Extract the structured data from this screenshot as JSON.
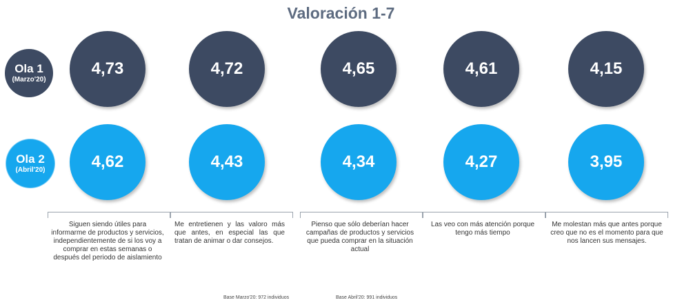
{
  "title": "Valoración 1-7",
  "waves": [
    {
      "name": "Ola 1",
      "sub": "(Marzo'20)",
      "color": "#3d4a62"
    },
    {
      "name": "Ola 2",
      "sub": "(Abril'20)",
      "color": "#16a7ee"
    }
  ],
  "chart_data": {
    "type": "bubble-comparison",
    "title": "Valoración 1-7",
    "categories": [
      "Siguen siendo útiles para informarme de productos y servicios, independientemente de si los voy a comprar en estas semanas o después del periodo de aislamiento",
      "Me entretienen y las valoro más que antes, en especial las que tratan de animar o dar consejos.",
      "Pienso que sólo deberían hacer campañas de productos y servicios que pueda comprar en la situación actual",
      "Las veo con más atención porque tengo más tiempo",
      "Me molestan más que antes porque creo que no es el momento para que nos lancen sus mensajes."
    ],
    "series": [
      {
        "name": "Ola 1 (Marzo'20)",
        "color": "#3d4a62",
        "values": [
          4.73,
          4.72,
          4.65,
          4.61,
          4.15
        ],
        "labels": [
          "4,73",
          "4,72",
          "4,65",
          "4,61",
          "4,15"
        ]
      },
      {
        "name": "Ola 2 (Abril'20)",
        "color": "#16a7ee",
        "values": [
          4.62,
          4.43,
          4.34,
          4.27,
          3.95
        ],
        "labels": [
          "4,62",
          "4,43",
          "4,34",
          "4,27",
          "3,95"
        ]
      }
    ]
  },
  "footer": {
    "base1": "Base Marzo'20: 972 individuos",
    "base2": "Base Abril'20: 991 individuos"
  }
}
